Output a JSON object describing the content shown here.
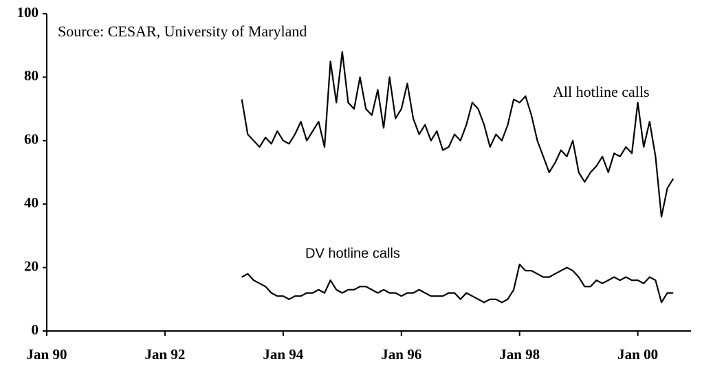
{
  "chart_data": {
    "type": "line",
    "annotations": [
      "Source: CESAR, University of Maryland",
      "All hotline calls",
      "DV hotline calls"
    ],
    "x": [
      1993.3,
      1993.4,
      1993.5,
      1993.6,
      1993.7,
      1993.8,
      1993.9,
      1994.0,
      1994.1,
      1994.2,
      1994.3,
      1994.4,
      1994.5,
      1994.6,
      1994.7,
      1994.8,
      1994.9,
      1995.0,
      1995.1,
      1995.2,
      1995.3,
      1995.4,
      1995.5,
      1995.6,
      1995.7,
      1995.8,
      1995.9,
      1996.0,
      1996.1,
      1996.2,
      1996.3,
      1996.4,
      1996.5,
      1996.6,
      1996.7,
      1996.8,
      1996.9,
      1997.0,
      1997.1,
      1997.2,
      1997.3,
      1997.4,
      1997.5,
      1997.6,
      1997.7,
      1997.8,
      1997.9,
      1998.0,
      1998.1,
      1998.2,
      1998.3,
      1998.4,
      1998.5,
      1998.6,
      1998.7,
      1998.8,
      1998.9,
      1999.0,
      1999.1,
      1999.2,
      1999.3,
      1999.4,
      1999.5,
      1999.6,
      1999.7,
      1999.8,
      1999.9,
      2000.0,
      2000.1,
      2000.2,
      2000.3,
      2000.4,
      2000.5,
      2000.6
    ],
    "series": [
      {
        "name": "All hotline calls",
        "color": "#000000",
        "values": [
          73,
          62,
          60,
          58,
          61,
          59,
          63,
          60,
          59,
          62,
          66,
          60,
          63,
          66,
          58,
          85,
          72,
          88,
          72,
          70,
          80,
          70,
          68,
          76,
          64,
          80,
          67,
          70,
          78,
          67,
          62,
          65,
          60,
          63,
          57,
          58,
          62,
          60,
          65,
          72,
          70,
          65,
          58,
          62,
          60,
          65,
          73,
          72,
          74,
          68,
          60,
          55,
          50,
          53,
          57,
          55,
          60,
          50,
          47,
          50,
          52,
          55,
          50,
          56,
          55,
          58,
          56,
          72,
          58,
          66,
          55,
          36,
          45,
          48
        ]
      },
      {
        "name": "DV hotline calls",
        "color": "#000000",
        "values": [
          17,
          18,
          16,
          15,
          14,
          12,
          11,
          11,
          10,
          11,
          11,
          12,
          12,
          13,
          12,
          16,
          13,
          12,
          13,
          13,
          14,
          14,
          13,
          12,
          13,
          12,
          12,
          11,
          12,
          12,
          13,
          12,
          11,
          11,
          11,
          12,
          12,
          10,
          12,
          11,
          10,
          9,
          10,
          10,
          9,
          10,
          13,
          21,
          19,
          19,
          18,
          17,
          17,
          18,
          19,
          20,
          19,
          17,
          14,
          14,
          16,
          15,
          16,
          17,
          16,
          17,
          16,
          16,
          15,
          17,
          16,
          9,
          12,
          12
        ]
      }
    ],
    "xlim": [
      1990,
      2000.9
    ],
    "xticks": [
      {
        "value": 1990,
        "label": "Jan 90"
      },
      {
        "value": 1992,
        "label": "Jan 92"
      },
      {
        "value": 1994,
        "label": "Jan 94"
      },
      {
        "value": 1996,
        "label": "Jan 96"
      },
      {
        "value": 1998,
        "label": "Jan 98"
      },
      {
        "value": 2000,
        "label": "Jan 00"
      }
    ],
    "ylim": [
      0,
      100
    ],
    "yticks": [
      0,
      20,
      40,
      60,
      80,
      100
    ],
    "grid": false
  }
}
